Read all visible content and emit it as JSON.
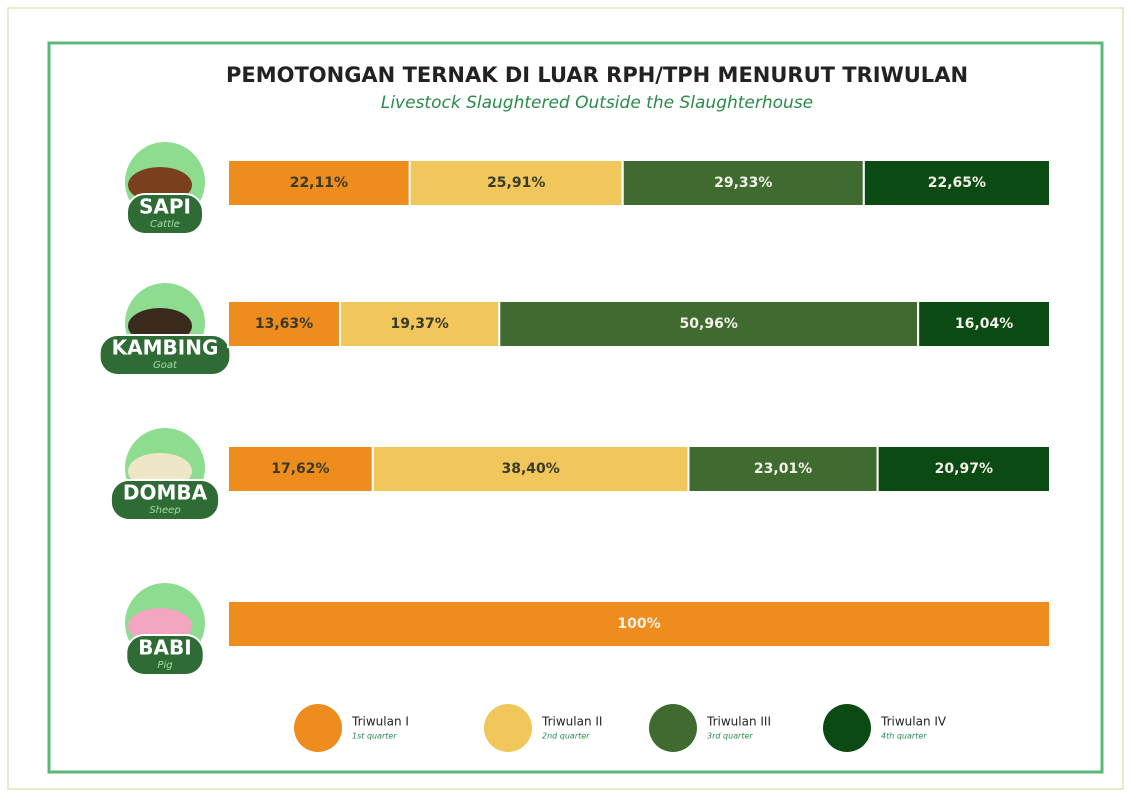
{
  "chart_data": {
    "type": "bar",
    "orientation": "horizontal",
    "stacked": true,
    "title": "PEMOTONGAN TERNAK DI LUAR RPH/TPH MENURUT TRIWULAN",
    "subtitle": "Livestock Slaughtered Outside the Slaughterhouse",
    "categories": [
      "SAPI",
      "KAMBING",
      "DOMBA",
      "BABI"
    ],
    "category_subtitles": [
      "Cattle",
      "Goat",
      "Sheep",
      "Pig"
    ],
    "xlim": [
      0,
      100
    ],
    "series": [
      {
        "name": "Triwulan I",
        "subname": "1st quarter",
        "color": "#ee8d1d",
        "values": [
          22.11,
          13.63,
          17.62,
          100
        ],
        "value_labels": [
          "22,11%",
          "13,63%",
          "17,62%",
          "100%"
        ]
      },
      {
        "name": "Triwulan II",
        "subname": "2nd quarter",
        "color": "#f1c75c",
        "values": [
          25.91,
          19.37,
          38.4,
          null
        ],
        "value_labels": [
          "25,91%",
          "19,37%",
          "38,40%",
          null
        ]
      },
      {
        "name": "Triwulan III",
        "subname": "3rd quarter",
        "color": "#3f6b31",
        "values": [
          29.33,
          50.96,
          23.01,
          null
        ],
        "value_labels": [
          "29,33%",
          "50,96%",
          "23,01%",
          null
        ]
      },
      {
        "name": "Triwulan IV",
        "subname": "4th quarter",
        "color": "#0b4a12",
        "values": [
          22.65,
          16.04,
          20.97,
          null
        ],
        "value_labels": [
          "22,65%",
          "16,04%",
          "20,97%",
          null
        ]
      }
    ]
  }
}
